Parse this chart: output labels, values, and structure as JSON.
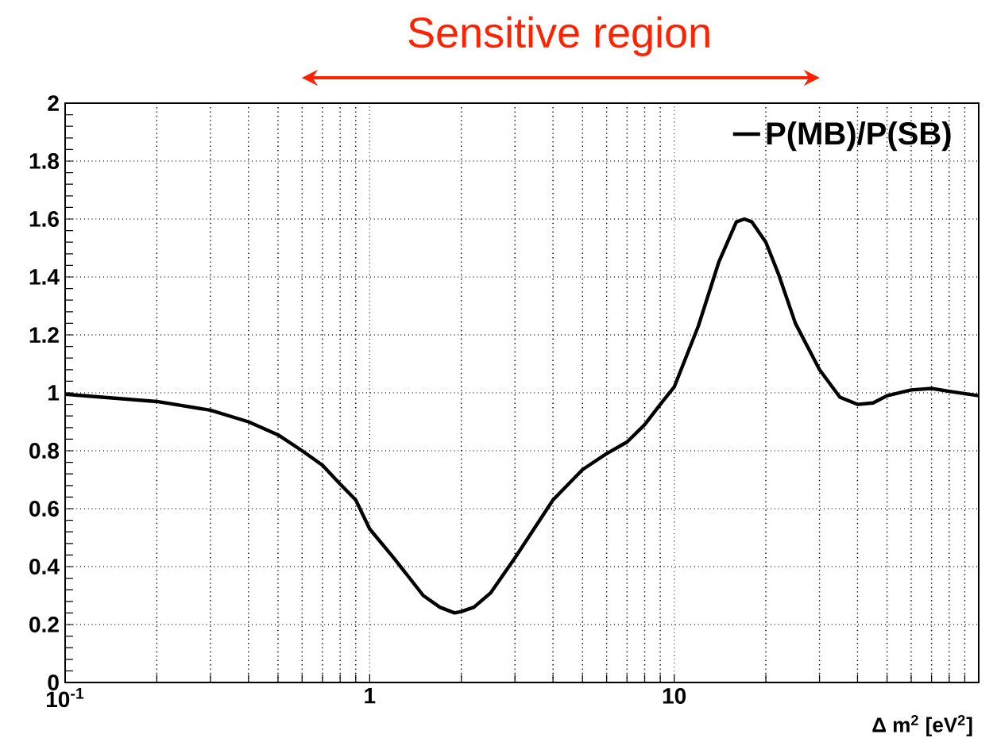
{
  "chart_data": {
    "type": "line",
    "xlabel": "Δ m$^{2}$ [eV$^{2}$]",
    "x": [
      0.1,
      0.2,
      0.3,
      0.4,
      0.5,
      0.6,
      0.7,
      0.8,
      0.9,
      1,
      1.2,
      1.5,
      1.7,
      1.9,
      2,
      2.2,
      2.5,
      3,
      4,
      5,
      6,
      7,
      8,
      9,
      10,
      12,
      14,
      16,
      17,
      18,
      20,
      22,
      25,
      30,
      35,
      40,
      45,
      50,
      60,
      70,
      80,
      100
    ],
    "series": [
      {
        "name": "P(MB)/P(SB)",
        "color": "#000000",
        "values": [
          0.995,
          0.97,
          0.94,
          0.9,
          0.855,
          0.8,
          0.75,
          0.685,
          0.63,
          0.53,
          0.43,
          0.3,
          0.26,
          0.24,
          0.245,
          0.26,
          0.31,
          0.43,
          0.63,
          0.735,
          0.79,
          0.83,
          0.89,
          0.96,
          1.02,
          1.23,
          1.45,
          1.59,
          1.6,
          1.59,
          1.52,
          1.41,
          1.24,
          1.08,
          0.985,
          0.96,
          0.965,
          0.99,
          1.01,
          1.015,
          1.005,
          0.99
        ]
      }
    ],
    "xlim": [
      0.1,
      100
    ],
    "ylim": [
      0,
      2
    ],
    "xticks": [
      {
        "value": 0.1,
        "label": "10$^{-1}$"
      },
      1,
      10
    ],
    "yticks": [
      0,
      0.2,
      0.4,
      0.6,
      0.8,
      1,
      1.2,
      1.4,
      1.6,
      1.8,
      2
    ],
    "log": "x",
    "grid": true,
    "legend": "top right",
    "marker": "none",
    "line_style": "solid",
    "annotations": [
      "Sensitive region"
    ]
  }
}
